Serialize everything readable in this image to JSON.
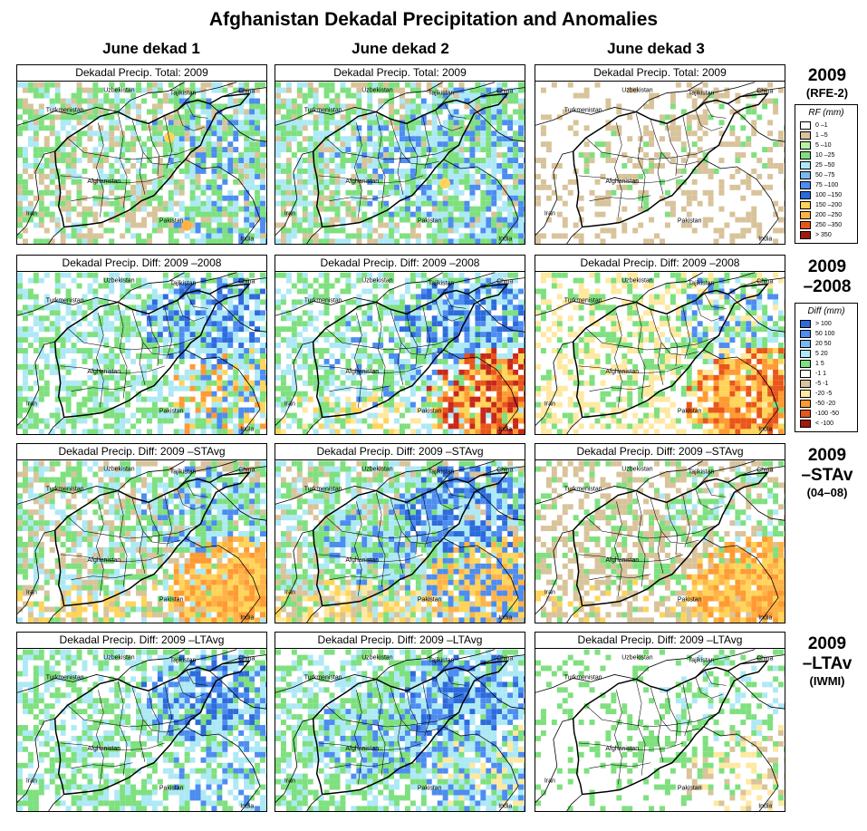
{
  "title": "Afghanistan Dekadal Precipitation and Anomalies",
  "columns": [
    "June dekad 1",
    "June dekad 2",
    "June dekad 3"
  ],
  "rows": [
    {
      "id": "total",
      "panel_title": "Dekadal Precip. Total: 2009",
      "label_main": "2009",
      "label_sub": "(RFE-2)",
      "legend_key": "rf",
      "panels": [
        {
          "bg": [
            "#ffffff",
            "#d8c39a",
            "#7ee07e",
            "#ade9f5"
          ],
          "bgw": [
            0.35,
            0.2,
            0.3,
            0.15
          ],
          "ne": [
            "#4d8cf0",
            "#7ee07e",
            "#ade9f5"
          ],
          "nes": 0.45,
          "sw": [
            "#ffffff",
            "#d8c39a"
          ],
          "sws": 0.35,
          "se": [
            "#7ee07e",
            "#ade9f5",
            "#4d8cf0"
          ],
          "ses": 0.35,
          "af": [
            "#ffffff",
            "#7ee07e",
            "#d8c39a",
            "#ade9f5"
          ],
          "afs": 0.3,
          "hot": [
            [
              0.61,
              0.34,
              "#ffd45a"
            ],
            [
              0.68,
              0.88,
              "#ffb347"
            ]
          ]
        },
        {
          "bg": [
            "#ffffff",
            "#7ee07e",
            "#ade9f5",
            "#d8c39a"
          ],
          "bgw": [
            0.3,
            0.3,
            0.25,
            0.15
          ],
          "ne": [
            "#4d8cf0",
            "#ade9f5",
            "#7ee07e"
          ],
          "nes": 0.55,
          "sw": [
            "#ffffff",
            "#d8c39a",
            "#7ee07e"
          ],
          "sws": 0.3,
          "se": [
            "#7ee07e",
            "#ade9f5",
            "#4d8cf0"
          ],
          "ses": 0.5,
          "af": [
            "#7ee07e",
            "#ade9f5",
            "#4d8cf0",
            "#ffffff"
          ],
          "afs": 0.5,
          "hot": [
            [
              0.68,
              0.62,
              "#ffd45a"
            ]
          ]
        },
        {
          "bg": [
            "#ffffff",
            "#d8c39a"
          ],
          "bgw": [
            0.8,
            0.2
          ],
          "ne": [
            "#ffffff",
            "#d8c39a",
            "#7ee07e"
          ],
          "nes": 0.35,
          "sw": [
            "#ffffff",
            "#d8c39a"
          ],
          "sws": 0.15,
          "se": [
            "#d8c39a",
            "#ffffff"
          ],
          "ses": 0.35,
          "af": [
            "#ffffff",
            "#d8c39a",
            "#7ee07e"
          ],
          "afs": 0.25,
          "hot": []
        }
      ]
    },
    {
      "id": "diff2008",
      "panel_title": "Dekadal Precip. Diff:  2009 –2008",
      "label_main": "2009",
      "label_sub": "–2008",
      "label_sub_big": true,
      "legend_key": "diff",
      "panels": [
        {
          "bg": [
            "#ffffff",
            "#7ee07e",
            "#ade9f5"
          ],
          "bgw": [
            0.45,
            0.3,
            0.25
          ],
          "ne": [
            "#4d8cf0",
            "#ade9f5",
            "#2d6bdb"
          ],
          "nes": 0.6,
          "sw": [
            "#ffffff",
            "#7ee07e"
          ],
          "sws": 0.2,
          "se": [
            "#ff9a33",
            "#ffd45a",
            "#4d8cf0",
            "#ade9f5"
          ],
          "ses": 0.45,
          "af": [
            "#ffffff",
            "#7ee07e",
            "#ade9f5"
          ],
          "afs": 0.35,
          "hot": []
        },
        {
          "bg": [
            "#ffffff",
            "#7ee07e",
            "#ade9f5"
          ],
          "bgw": [
            0.45,
            0.3,
            0.25
          ],
          "ne": [
            "#4d8cf0",
            "#2d6bdb",
            "#ade9f5"
          ],
          "nes": 0.65,
          "sw": [
            "#ffd45a",
            "#ffffff",
            "#ffe8a0"
          ],
          "sws": 0.4,
          "se": [
            "#ff9a33",
            "#e8561a",
            "#c8281a",
            "#ffd45a"
          ],
          "ses": 0.75,
          "af": [
            "#4d8cf0",
            "#ade9f5",
            "#7ee07e",
            "#ffffff"
          ],
          "afs": 0.5,
          "hot": []
        },
        {
          "bg": [
            "#ffffff",
            "#ffe8a0",
            "#7ee07e"
          ],
          "bgw": [
            0.55,
            0.25,
            0.2
          ],
          "ne": [
            "#ade9f5",
            "#7ee07e",
            "#4d8cf0",
            "#ffffff"
          ],
          "nes": 0.45,
          "sw": [
            "#ffffff",
            "#ffe8a0"
          ],
          "sws": 0.3,
          "se": [
            "#ff9a33",
            "#e8561a",
            "#ffd45a"
          ],
          "ses": 0.75,
          "af": [
            "#ffffff",
            "#7ee07e",
            "#ffe8a0"
          ],
          "afs": 0.3,
          "hot": []
        }
      ]
    },
    {
      "id": "diffstavg",
      "panel_title": "Dekadal Precip. Diff:  2009 –STAvg",
      "label_main": "2009",
      "label_sub": "–STAv",
      "label_sub_big": true,
      "label_sub2": "(04–08)",
      "legend_key": null,
      "panels": [
        {
          "bg": [
            "#ffffff",
            "#7ee07e",
            "#ade9f5",
            "#d8c39a"
          ],
          "bgw": [
            0.35,
            0.25,
            0.2,
            0.2
          ],
          "ne": [
            "#4d8cf0",
            "#ade9f5",
            "#7ee07e"
          ],
          "nes": 0.6,
          "sw": [
            "#d8c39a",
            "#ffd45a",
            "#ffffff"
          ],
          "sws": 0.55,
          "se": [
            "#ffb347",
            "#ff9a33",
            "#ffd45a"
          ],
          "ses": 0.8,
          "af": [
            "#ffffff",
            "#ade9f5",
            "#7ee07e",
            "#d8c39a"
          ],
          "afs": 0.4,
          "hot": []
        },
        {
          "bg": [
            "#ffffff",
            "#7ee07e",
            "#ade9f5",
            "#d8c39a"
          ],
          "bgw": [
            0.3,
            0.3,
            0.25,
            0.15
          ],
          "ne": [
            "#4d8cf0",
            "#ade9f5",
            "#2d6bdb"
          ],
          "nes": 0.65,
          "sw": [
            "#ffd45a",
            "#d8c39a",
            "#ffe8a0"
          ],
          "sws": 0.55,
          "se": [
            "#ffb347",
            "#ffd45a",
            "#4d8cf0"
          ],
          "ses": 0.7,
          "af": [
            "#4d8cf0",
            "#ade9f5",
            "#7ee07e"
          ],
          "afs": 0.55,
          "hot": []
        },
        {
          "bg": [
            "#ffffff",
            "#d8c39a",
            "#7ee07e"
          ],
          "bgw": [
            0.5,
            0.35,
            0.15
          ],
          "ne": [
            "#ade9f5",
            "#7ee07e",
            "#ffffff"
          ],
          "nes": 0.4,
          "sw": [
            "#d8c39a",
            "#ffd45a",
            "#ffffff"
          ],
          "sws": 0.55,
          "se": [
            "#ff9a33",
            "#ffb347",
            "#ffd45a"
          ],
          "ses": 0.8,
          "af": [
            "#ffffff",
            "#d8c39a",
            "#7ee07e"
          ],
          "afs": 0.35,
          "hot": []
        }
      ]
    },
    {
      "id": "diffltavg",
      "panel_title": "Dekadal Precip. Diff:  2009 –LTAvg",
      "label_main": "2009",
      "label_sub": "–LTAv",
      "label_sub_big": true,
      "label_sub2": "(IWMI)",
      "legend_key": null,
      "panels": [
        {
          "bg": [
            "#ffffff",
            "#7ee07e",
            "#ade9f5"
          ],
          "bgw": [
            0.45,
            0.3,
            0.25
          ],
          "ne": [
            "#4d8cf0",
            "#ade9f5",
            "#2d6bdb"
          ],
          "nes": 0.6,
          "sw": [
            "#ffffff",
            "#7ee07e"
          ],
          "sws": 0.2,
          "se": [
            "#ade9f5",
            "#4d8cf0",
            "#ffffff"
          ],
          "ses": 0.4,
          "af": [
            "#ffffff",
            "#7ee07e",
            "#ade9f5"
          ],
          "afs": 0.35,
          "hot": []
        },
        {
          "bg": [
            "#ffffff",
            "#7ee07e",
            "#ade9f5"
          ],
          "bgw": [
            0.35,
            0.35,
            0.3
          ],
          "ne": [
            "#4d8cf0",
            "#2d6bdb",
            "#ade9f5"
          ],
          "nes": 0.65,
          "sw": [
            "#ffffff",
            "#7ee07e"
          ],
          "sws": 0.25,
          "se": [
            "#ade9f5",
            "#4d8cf0",
            "#ffe8a0"
          ],
          "ses": 0.55,
          "af": [
            "#4d8cf0",
            "#ade9f5",
            "#7ee07e"
          ],
          "afs": 0.55,
          "hot": []
        },
        {
          "bg": [
            "#ffffff",
            "#7ee07e"
          ],
          "bgw": [
            0.8,
            0.2
          ],
          "ne": [
            "#ade9f5",
            "#7ee07e",
            "#ffffff"
          ],
          "nes": 0.4,
          "sw": [
            "#ffffff"
          ],
          "sws": 0.1,
          "se": [
            "#ffe8a0",
            "#d8c39a",
            "#ffffff"
          ],
          "ses": 0.45,
          "af": [
            "#ffffff",
            "#7ee07e"
          ],
          "afs": 0.25,
          "hot": []
        }
      ]
    }
  ],
  "place_names": {
    "uzbekistan": "Uzbekistan",
    "tajikistan": "Tajikistan",
    "china": "China",
    "turkmenistan": "Turkmenistan",
    "afghanistan": "Afghanistan",
    "iran": "Iran",
    "pakistan": "Pakistan",
    "india": "India"
  },
  "legends": {
    "rf": {
      "title": "RF (mm)",
      "items": [
        {
          "label": "0 –1",
          "color": "#ffffff"
        },
        {
          "label": "1 –5",
          "color": "#d8c39a"
        },
        {
          "label": "5 –10",
          "color": "#b6f5a0"
        },
        {
          "label": "10 –25",
          "color": "#7ee07e"
        },
        {
          "label": "25 –50",
          "color": "#ade9f5"
        },
        {
          "label": "50 –75",
          "color": "#7ab8f5"
        },
        {
          "label": "75 –100",
          "color": "#4d8cf0"
        },
        {
          "label": "100 –150",
          "color": "#2d6bdb"
        },
        {
          "label": "150 –200",
          "color": "#ffd45a"
        },
        {
          "label": "200 –250",
          "color": "#ffb347"
        },
        {
          "label": "250 –350",
          "color": "#e8561a"
        },
        {
          "label": "> 350",
          "color": "#a01a10"
        }
      ]
    },
    "diff": {
      "title": "Diff (mm)",
      "items": [
        {
          "label": "> 100",
          "color": "#2d6bdb"
        },
        {
          "label": "50  100",
          "color": "#4d8cf0"
        },
        {
          "label": "20  50",
          "color": "#7ab8f5"
        },
        {
          "label": "5  20",
          "color": "#ade9f5"
        },
        {
          "label": "1  5",
          "color": "#7ee07e"
        },
        {
          "label": "-1  1",
          "color": "#ffffff"
        },
        {
          "label": "-5  -1",
          "color": "#d8c39a"
        },
        {
          "label": "-20  -5",
          "color": "#ffe8a0"
        },
        {
          "label": "-50  -20",
          "color": "#ff9a33"
        },
        {
          "label": "-100  -50",
          "color": "#e8561a"
        },
        {
          "label": "< -100",
          "color": "#a01a10"
        }
      ]
    }
  }
}
